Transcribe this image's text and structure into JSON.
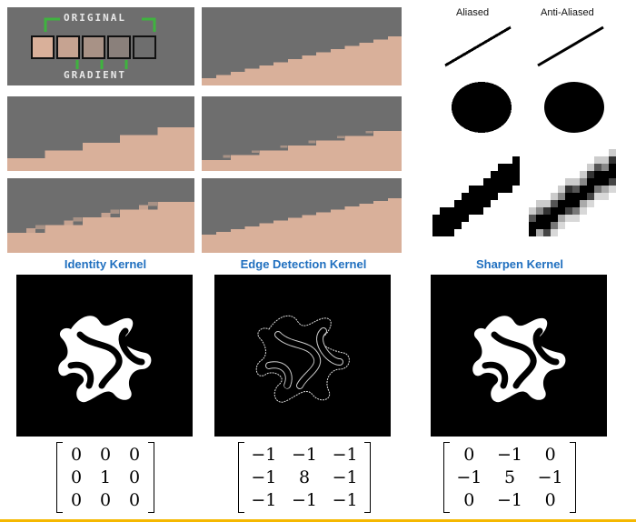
{
  "legend": {
    "original": "ORIGINAL",
    "gradient": "GRADIENT",
    "swatches": [
      "#d9b09a",
      "#c6a391",
      "#a89286",
      "#8a807b",
      "#6e6e6e"
    ]
  },
  "aliasing": {
    "aliased_label": "Aliased",
    "anti_aliased_label": "Anti-Aliased"
  },
  "colors": {
    "sky": "#6e6e6e",
    "ground": "#d9b09a",
    "accent_title": "#1f6fbf",
    "frame_green": "#3fb33f",
    "bottom_rule": "#f5b800"
  },
  "kernels": [
    {
      "title": "Identity Kernel",
      "matrix": [
        [
          "0",
          "0",
          "0"
        ],
        [
          "0",
          "1",
          "0"
        ],
        [
          "0",
          "0",
          "0"
        ]
      ]
    },
    {
      "title": "Edge Detection Kernel",
      "matrix": [
        [
          "−1",
          "−1",
          "−1"
        ],
        [
          "−1",
          "8",
          "−1"
        ],
        [
          "−1",
          "−1",
          "−1"
        ]
      ]
    },
    {
      "title": "Sharpen Kernel",
      "matrix": [
        [
          "0",
          "−1",
          "0"
        ],
        [
          "−1",
          "5",
          "−1"
        ],
        [
          "0",
          "−1",
          "0"
        ]
      ]
    }
  ]
}
